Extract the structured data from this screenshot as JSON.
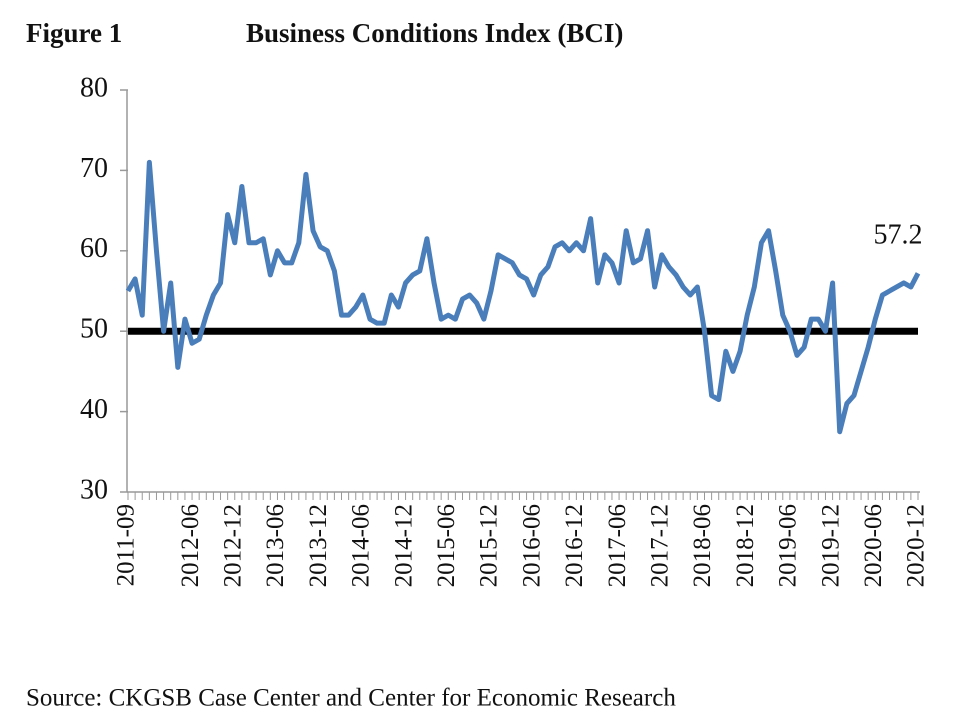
{
  "chart_data": {
    "type": "line",
    "figure_label": "Figure 1",
    "title": "Business Conditions Index (BCI)",
    "source": "Source: CKGSB Case Center and Center for Economic Research",
    "annotation": "57.2",
    "categories": [
      "2011-09",
      null,
      null,
      null,
      null,
      null,
      null,
      null,
      null,
      "2012-06",
      null,
      null,
      null,
      null,
      null,
      "2012-12",
      null,
      null,
      null,
      null,
      null,
      "2013-06",
      null,
      null,
      null,
      null,
      null,
      "2013-12",
      null,
      null,
      null,
      null,
      null,
      "2014-06",
      null,
      null,
      null,
      null,
      null,
      "2014-12",
      null,
      null,
      null,
      null,
      null,
      "2015-06",
      null,
      null,
      null,
      null,
      null,
      "2015-12",
      null,
      null,
      null,
      null,
      null,
      "2016-06",
      null,
      null,
      null,
      null,
      null,
      "2016-12",
      null,
      null,
      null,
      null,
      null,
      "2017-06",
      null,
      null,
      null,
      null,
      null,
      "2017-12",
      null,
      null,
      null,
      null,
      null,
      "2018-06",
      null,
      null,
      null,
      null,
      null,
      "2018-12",
      null,
      null,
      null,
      null,
      null,
      "2019-06",
      null,
      null,
      null,
      null,
      null,
      "2019-12",
      null,
      null,
      null,
      null,
      null,
      "2020-06",
      null,
      null,
      null,
      null,
      null,
      "2020-12"
    ],
    "series": [
      {
        "name": "BCI",
        "color": "#4a7ebb",
        "values": [
          55,
          56.5,
          52,
          71,
          60,
          50,
          56,
          45.5,
          51.5,
          48.5,
          49,
          52,
          54.5,
          56,
          64.5,
          61,
          68,
          61,
          61,
          61.5,
          57,
          60,
          58.5,
          58.5,
          61,
          69.5,
          62.5,
          60.5,
          60,
          57.5,
          52,
          52,
          53,
          54.5,
          51.5,
          51,
          51,
          54.5,
          53,
          56,
          57,
          57.5,
          61.5,
          56,
          51.5,
          52,
          51.5,
          54,
          54.5,
          53.5,
          51.5,
          55,
          59.5,
          59,
          58.5,
          57,
          56.5,
          54.5,
          57,
          58,
          60.5,
          61,
          60,
          61,
          60,
          64,
          56,
          59.5,
          58.5,
          56,
          62.5,
          58.5,
          59,
          62.5,
          55.5,
          59.5,
          58,
          57,
          55.5,
          54.5,
          55.5,
          50,
          42,
          41.5,
          47.5,
          45,
          47.5,
          52,
          55.5,
          61,
          62.5,
          57.5,
          52,
          50,
          47,
          48,
          51.5,
          51.5,
          50,
          56,
          37.5,
          41,
          42,
          45,
          48,
          51.5,
          54.5,
          55,
          55.5,
          56,
          55.5,
          57.2
        ]
      }
    ],
    "reference_line": 50,
    "reference_color": "#000000",
    "ylim": [
      30,
      80
    ],
    "yticks": [
      30,
      40,
      50,
      60,
      70,
      80
    ],
    "grid": false
  }
}
